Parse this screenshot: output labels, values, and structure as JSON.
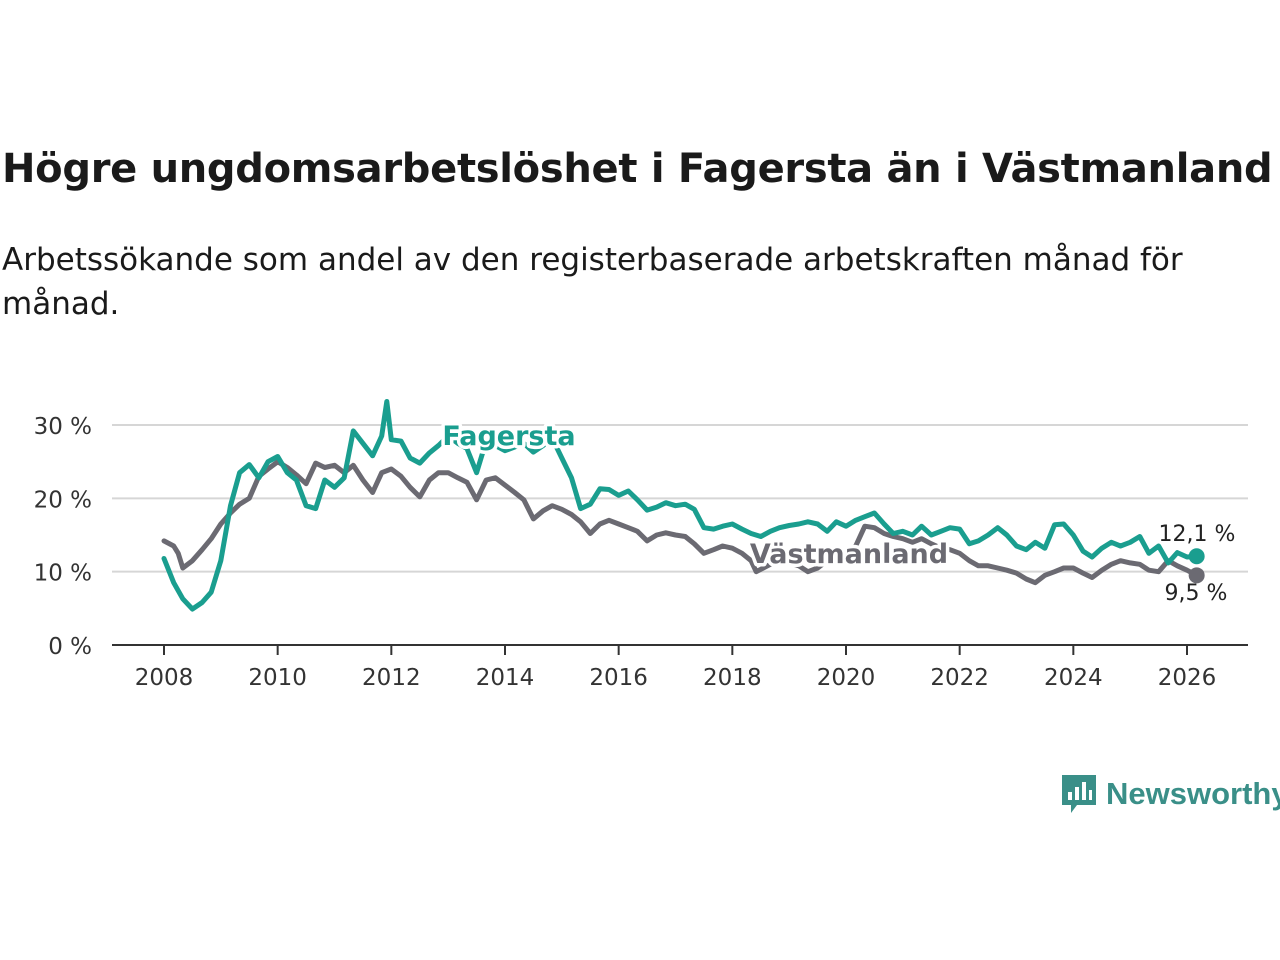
{
  "title": "Högre ungdomsarbetslöshet i Fagersta än i Västmanland",
  "subtitle": "Arbetssökande som andel av den registerbaserade arbetskraften månad för månad.",
  "brand": {
    "name": "Newsworthy",
    "color": "#3a8f88",
    "icon": "bar-chart-speech-bubble-icon"
  },
  "chart_data": {
    "type": "line",
    "title": "Högre ungdomsarbetslöshet i Fagersta än i Västmanland",
    "xlabel": "",
    "ylabel": "",
    "xlim": [
      2008,
      2026.2
    ],
    "ylim": [
      0,
      30
    ],
    "grid": true,
    "y_ticks": [
      {
        "value": 0,
        "label": "0 %"
      },
      {
        "value": 10,
        "label": "10 %"
      },
      {
        "value": 20,
        "label": "20 %"
      },
      {
        "value": 30,
        "label": "30 %"
      }
    ],
    "x_ticks": [
      {
        "value": 2008,
        "label": "2008"
      },
      {
        "value": 2010,
        "label": "2010"
      },
      {
        "value": 2012,
        "label": "2012"
      },
      {
        "value": 2014,
        "label": "2014"
      },
      {
        "value": 2016,
        "label": "2016"
      },
      {
        "value": 2018,
        "label": "2018"
      },
      {
        "value": 2020,
        "label": "2020"
      },
      {
        "value": 2022,
        "label": "2022"
      },
      {
        "value": 2024,
        "label": "2024"
      },
      {
        "value": 2026,
        "label": "2026"
      }
    ],
    "series": [
      {
        "name": "Fagersta",
        "label": "Fagersta",
        "color": "#1a9e8f",
        "end_label": "12,1 %",
        "points": [
          [
            2008.0,
            11.8
          ],
          [
            2008.17,
            8.5
          ],
          [
            2008.33,
            6.3
          ],
          [
            2008.5,
            4.9
          ],
          [
            2008.67,
            5.8
          ],
          [
            2008.83,
            7.2
          ],
          [
            2009.0,
            11.5
          ],
          [
            2009.17,
            19.0
          ],
          [
            2009.33,
            23.5
          ],
          [
            2009.5,
            24.6
          ],
          [
            2009.67,
            22.8
          ],
          [
            2009.83,
            25.0
          ],
          [
            2010.0,
            25.7
          ],
          [
            2010.17,
            23.5
          ],
          [
            2010.33,
            22.5
          ],
          [
            2010.5,
            19.0
          ],
          [
            2010.67,
            18.6
          ],
          [
            2010.83,
            22.5
          ],
          [
            2011.0,
            21.5
          ],
          [
            2011.17,
            22.8
          ],
          [
            2011.33,
            29.2
          ],
          [
            2011.5,
            27.5
          ],
          [
            2011.67,
            25.8
          ],
          [
            2011.83,
            28.5
          ],
          [
            2011.92,
            33.2
          ],
          [
            2012.0,
            28.0
          ],
          [
            2012.17,
            27.8
          ],
          [
            2012.33,
            25.5
          ],
          [
            2012.5,
            24.8
          ],
          [
            2012.67,
            26.2
          ],
          [
            2012.83,
            27.2
          ],
          [
            2013.0,
            28.5
          ],
          [
            2013.17,
            27.5
          ],
          [
            2013.33,
            26.8
          ],
          [
            2013.5,
            23.5
          ],
          [
            2013.67,
            27.8
          ],
          [
            2013.83,
            27.2
          ],
          [
            2014.0,
            26.5
          ],
          [
            2014.17,
            27.0
          ],
          [
            2014.33,
            27.5
          ],
          [
            2014.5,
            26.3
          ],
          [
            2014.67,
            27.2
          ],
          [
            2014.83,
            28.2
          ],
          [
            2015.0,
            25.5
          ],
          [
            2015.17,
            22.8
          ],
          [
            2015.33,
            18.6
          ],
          [
            2015.5,
            19.2
          ],
          [
            2015.67,
            21.3
          ],
          [
            2015.83,
            21.2
          ],
          [
            2016.0,
            20.4
          ],
          [
            2016.17,
            21.0
          ],
          [
            2016.33,
            19.8
          ],
          [
            2016.5,
            18.4
          ],
          [
            2016.67,
            18.8
          ],
          [
            2016.83,
            19.4
          ],
          [
            2017.0,
            19.0
          ],
          [
            2017.17,
            19.2
          ],
          [
            2017.33,
            18.5
          ],
          [
            2017.5,
            16.0
          ],
          [
            2017.67,
            15.8
          ],
          [
            2017.83,
            16.2
          ],
          [
            2018.0,
            16.5
          ],
          [
            2018.17,
            15.8
          ],
          [
            2018.33,
            15.2
          ],
          [
            2018.5,
            14.8
          ],
          [
            2018.67,
            15.5
          ],
          [
            2018.83,
            16.0
          ],
          [
            2019.0,
            16.3
          ],
          [
            2019.17,
            16.5
          ],
          [
            2019.33,
            16.8
          ],
          [
            2019.5,
            16.5
          ],
          [
            2019.67,
            15.5
          ],
          [
            2019.83,
            16.8
          ],
          [
            2020.0,
            16.2
          ],
          [
            2020.17,
            17.0
          ],
          [
            2020.33,
            17.5
          ],
          [
            2020.5,
            18.0
          ],
          [
            2020.67,
            16.5
          ],
          [
            2020.83,
            15.2
          ],
          [
            2021.0,
            15.5
          ],
          [
            2021.17,
            15.0
          ],
          [
            2021.33,
            16.2
          ],
          [
            2021.5,
            15.0
          ],
          [
            2021.67,
            15.5
          ],
          [
            2021.83,
            16.0
          ],
          [
            2022.0,
            15.8
          ],
          [
            2022.17,
            13.8
          ],
          [
            2022.33,
            14.2
          ],
          [
            2022.5,
            15.0
          ],
          [
            2022.67,
            16.0
          ],
          [
            2022.83,
            15.0
          ],
          [
            2023.0,
            13.5
          ],
          [
            2023.17,
            13.0
          ],
          [
            2023.33,
            14.0
          ],
          [
            2023.5,
            13.2
          ],
          [
            2023.67,
            16.4
          ],
          [
            2023.83,
            16.5
          ],
          [
            2024.0,
            15.0
          ],
          [
            2024.17,
            12.8
          ],
          [
            2024.33,
            12.0
          ],
          [
            2024.5,
            13.2
          ],
          [
            2024.67,
            14.0
          ],
          [
            2024.83,
            13.5
          ],
          [
            2025.0,
            14.0
          ],
          [
            2025.17,
            14.8
          ],
          [
            2025.33,
            12.5
          ],
          [
            2025.5,
            13.5
          ],
          [
            2025.67,
            11.2
          ],
          [
            2025.83,
            12.6
          ],
          [
            2026.0,
            12.0
          ],
          [
            2026.17,
            12.1
          ]
        ]
      },
      {
        "name": "Västmanland",
        "label": "Västmanland",
        "color": "#6b6a72",
        "end_label": "9,5 %",
        "points": [
          [
            2008.0,
            14.2
          ],
          [
            2008.17,
            13.5
          ],
          [
            2008.25,
            12.5
          ],
          [
            2008.33,
            10.5
          ],
          [
            2008.5,
            11.5
          ],
          [
            2008.67,
            13.0
          ],
          [
            2008.83,
            14.5
          ],
          [
            2009.0,
            16.5
          ],
          [
            2009.17,
            18.0
          ],
          [
            2009.33,
            19.2
          ],
          [
            2009.5,
            20.0
          ],
          [
            2009.67,
            23.0
          ],
          [
            2009.83,
            24.0
          ],
          [
            2010.0,
            25.0
          ],
          [
            2010.17,
            24.2
          ],
          [
            2010.33,
            23.2
          ],
          [
            2010.5,
            22.0
          ],
          [
            2010.67,
            24.8
          ],
          [
            2010.83,
            24.2
          ],
          [
            2011.0,
            24.5
          ],
          [
            2011.17,
            23.5
          ],
          [
            2011.33,
            24.5
          ],
          [
            2011.5,
            22.5
          ],
          [
            2011.67,
            20.8
          ],
          [
            2011.83,
            23.5
          ],
          [
            2012.0,
            24.0
          ],
          [
            2012.17,
            23.0
          ],
          [
            2012.33,
            21.5
          ],
          [
            2012.5,
            20.2
          ],
          [
            2012.67,
            22.5
          ],
          [
            2012.83,
            23.5
          ],
          [
            2013.0,
            23.5
          ],
          [
            2013.17,
            22.8
          ],
          [
            2013.33,
            22.2
          ],
          [
            2013.5,
            19.8
          ],
          [
            2013.67,
            22.5
          ],
          [
            2013.83,
            22.8
          ],
          [
            2014.0,
            21.8
          ],
          [
            2014.17,
            20.8
          ],
          [
            2014.33,
            19.8
          ],
          [
            2014.5,
            17.2
          ],
          [
            2014.67,
            18.3
          ],
          [
            2014.83,
            19.0
          ],
          [
            2015.0,
            18.5
          ],
          [
            2015.17,
            17.8
          ],
          [
            2015.33,
            16.8
          ],
          [
            2015.5,
            15.2
          ],
          [
            2015.67,
            16.5
          ],
          [
            2015.83,
            17.0
          ],
          [
            2016.0,
            16.5
          ],
          [
            2016.17,
            16.0
          ],
          [
            2016.33,
            15.5
          ],
          [
            2016.5,
            14.2
          ],
          [
            2016.67,
            15.0
          ],
          [
            2016.83,
            15.3
          ],
          [
            2017.0,
            15.0
          ],
          [
            2017.17,
            14.8
          ],
          [
            2017.33,
            13.8
          ],
          [
            2017.5,
            12.5
          ],
          [
            2017.67,
            13.0
          ],
          [
            2017.83,
            13.5
          ],
          [
            2018.0,
            13.2
          ],
          [
            2018.17,
            12.5
          ],
          [
            2018.33,
            11.5
          ],
          [
            2018.42,
            10.0
          ],
          [
            2018.67,
            11.0
          ],
          [
            2018.83,
            11.5
          ],
          [
            2019.0,
            11.2
          ],
          [
            2019.17,
            10.8
          ],
          [
            2019.33,
            10.0
          ],
          [
            2019.5,
            10.5
          ],
          [
            2019.67,
            11.5
          ],
          [
            2019.83,
            12.2
          ],
          [
            2020.0,
            12.5
          ],
          [
            2020.17,
            13.5
          ],
          [
            2020.33,
            16.2
          ],
          [
            2020.5,
            16.0
          ],
          [
            2020.67,
            15.2
          ],
          [
            2020.83,
            14.8
          ],
          [
            2021.0,
            14.5
          ],
          [
            2021.17,
            14.0
          ],
          [
            2021.33,
            14.5
          ],
          [
            2021.5,
            13.8
          ],
          [
            2021.67,
            13.2
          ],
          [
            2021.83,
            13.0
          ],
          [
            2022.0,
            12.5
          ],
          [
            2022.17,
            11.5
          ],
          [
            2022.33,
            10.8
          ],
          [
            2022.5,
            10.8
          ],
          [
            2022.67,
            10.5
          ],
          [
            2022.83,
            10.2
          ],
          [
            2023.0,
            9.8
          ],
          [
            2023.17,
            9.0
          ],
          [
            2023.33,
            8.5
          ],
          [
            2023.5,
            9.5
          ],
          [
            2023.67,
            10.0
          ],
          [
            2023.83,
            10.5
          ],
          [
            2024.0,
            10.5
          ],
          [
            2024.17,
            9.8
          ],
          [
            2024.33,
            9.2
          ],
          [
            2024.5,
            10.2
          ],
          [
            2024.67,
            11.0
          ],
          [
            2024.83,
            11.5
          ],
          [
            2025.0,
            11.2
          ],
          [
            2025.17,
            11.0
          ],
          [
            2025.33,
            10.2
          ],
          [
            2025.5,
            10.0
          ],
          [
            2025.67,
            11.5
          ],
          [
            2025.83,
            10.8
          ],
          [
            2026.0,
            10.2
          ],
          [
            2026.17,
            9.5
          ]
        ]
      }
    ]
  }
}
